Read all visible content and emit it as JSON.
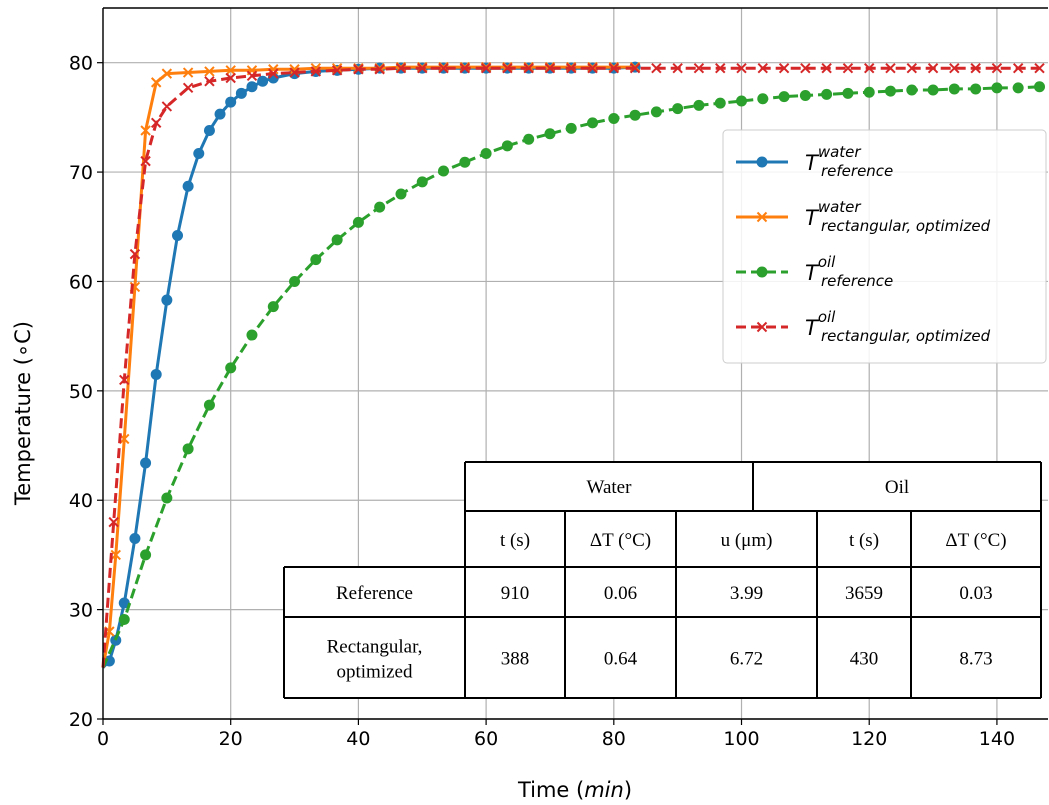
{
  "chart_data": {
    "type": "line",
    "xlabel": "Time (min)",
    "xlabel_prefix": "Time (",
    "xlabel_unit": "min",
    "xlabel_suffix": ")",
    "ylabel": "Temperature (∘C)",
    "xlim": [
      0,
      148
    ],
    "ylim": [
      20,
      85
    ],
    "x_ticks": [
      0,
      20,
      40,
      60,
      80,
      100,
      120,
      140
    ],
    "y_ticks": [
      20,
      30,
      40,
      50,
      60,
      70,
      80
    ],
    "grid": true,
    "legend_position": "center-right",
    "series": [
      {
        "name": "T water reference",
        "label_main": "T",
        "label_sup": "water",
        "label_sub": "reference",
        "color": "#1f77b4",
        "linestyle": "solid",
        "marker": "circle",
        "x": [
          0,
          1,
          2,
          3.33,
          5,
          6.67,
          8.33,
          10,
          11.67,
          13.33,
          15,
          16.67,
          18.33,
          20,
          21.67,
          23.33,
          25,
          26.67,
          30,
          33.33,
          36.67,
          40,
          43.33,
          46.67,
          50,
          53.33,
          56.67,
          60,
          63.33,
          66.67,
          70,
          73.33,
          76.67,
          80,
          83.33
        ],
        "y": [
          24.7,
          25.3,
          27.2,
          30.6,
          36.5,
          43.4,
          51.5,
          58.3,
          64.2,
          68.7,
          71.7,
          73.8,
          75.3,
          76.4,
          77.2,
          77.8,
          78.3,
          78.6,
          79.0,
          79.2,
          79.3,
          79.4,
          79.5,
          79.5,
          79.5,
          79.5,
          79.5,
          79.5,
          79.5,
          79.5,
          79.5,
          79.5,
          79.5,
          79.5,
          79.6
        ]
      },
      {
        "name": "T water rectangular, optimized",
        "label_main": "T",
        "label_sup": "water",
        "label_sub": "rectangular, optimized",
        "color": "#ff7f0e",
        "linestyle": "solid",
        "marker": "x",
        "x": [
          0,
          1,
          2,
          3.33,
          5,
          6.67,
          8.33,
          10,
          13.33,
          16.67,
          20,
          23.33,
          26.67,
          30,
          33.33,
          36.67,
          40,
          43.33,
          46.67,
          50,
          53.33,
          56.67,
          60,
          63.33,
          66.67,
          70,
          73.33,
          76.67,
          80,
          83.33
        ],
        "y": [
          24.7,
          28.0,
          35.0,
          45.6,
          59.5,
          73.8,
          78.2,
          79.0,
          79.1,
          79.2,
          79.3,
          79.3,
          79.4,
          79.4,
          79.5,
          79.5,
          79.5,
          79.5,
          79.6,
          79.6,
          79.6,
          79.6,
          79.6,
          79.6,
          79.6,
          79.6,
          79.6,
          79.6,
          79.6,
          79.6
        ]
      },
      {
        "name": "T oil reference",
        "label_main": "T",
        "label_sup": "oil",
        "label_sub": "reference",
        "color": "#2ca02c",
        "linestyle": "dashed",
        "marker": "circle",
        "x": [
          0,
          3.33,
          6.67,
          10,
          13.33,
          16.67,
          20,
          23.33,
          26.67,
          30,
          33.33,
          36.67,
          40,
          43.33,
          46.67,
          50,
          53.33,
          56.67,
          60,
          63.33,
          66.67,
          70,
          73.33,
          76.67,
          80,
          83.33,
          86.67,
          90,
          93.33,
          96.67,
          100,
          103.33,
          106.67,
          110,
          113.33,
          116.67,
          120,
          123.33,
          126.67,
          130,
          133.33,
          136.67,
          140,
          143.33,
          146.67
        ],
        "y": [
          24.7,
          29.1,
          35.0,
          40.2,
          44.7,
          48.7,
          52.1,
          55.1,
          57.7,
          60.0,
          62.0,
          63.8,
          65.4,
          66.8,
          68.0,
          69.1,
          70.1,
          70.9,
          71.7,
          72.4,
          73.0,
          73.5,
          74.0,
          74.5,
          74.9,
          75.2,
          75.5,
          75.8,
          76.1,
          76.3,
          76.5,
          76.7,
          76.9,
          77.0,
          77.1,
          77.2,
          77.3,
          77.4,
          77.5,
          77.5,
          77.6,
          77.6,
          77.7,
          77.7,
          77.8
        ]
      },
      {
        "name": "T oil rectangular, optimized",
        "label_main": "T",
        "label_sup": "oil",
        "label_sub": "rectangular, optimized",
        "color": "#d62728",
        "linestyle": "dashed",
        "marker": "x",
        "x": [
          0,
          1.67,
          3.33,
          5,
          6.67,
          8.33,
          10,
          13.33,
          16.67,
          20,
          23.33,
          26.67,
          30,
          33.33,
          36.67,
          40,
          43.33,
          46.67,
          50,
          53.33,
          56.67,
          60,
          63.33,
          66.67,
          70,
          73.33,
          76.67,
          80,
          83.33,
          86.67,
          90,
          93.33,
          96.67,
          100,
          103.33,
          106.67,
          110,
          113.33,
          116.67,
          120,
          123.33,
          126.67,
          130,
          133.33,
          136.67,
          140,
          143.33,
          146.67
        ],
        "y": [
          24.7,
          38.0,
          51.0,
          62.5,
          71.0,
          74.5,
          76.0,
          77.7,
          78.3,
          78.6,
          78.8,
          79.0,
          79.1,
          79.2,
          79.3,
          79.4,
          79.4,
          79.5,
          79.5,
          79.5,
          79.5,
          79.5,
          79.5,
          79.5,
          79.5,
          79.5,
          79.5,
          79.5,
          79.5,
          79.5,
          79.5,
          79.5,
          79.5,
          79.5,
          79.5,
          79.5,
          79.5,
          79.5,
          79.5,
          79.5,
          79.5,
          79.5,
          79.5,
          79.5,
          79.5,
          79.5,
          79.5,
          79.5
        ]
      }
    ]
  },
  "table": {
    "group_headers": [
      "Water",
      "Oil"
    ],
    "column_headers": [
      "t (s)",
      "ΔT (°C)",
      "u (μm)",
      "t (s)",
      "ΔT (°C)"
    ],
    "rows": [
      {
        "label": [
          "Reference"
        ],
        "values": [
          "910",
          "0.06",
          "3.99",
          "3659",
          "0.03"
        ]
      },
      {
        "label": [
          "Rectangular,",
          "optimized"
        ],
        "values": [
          "388",
          "0.64",
          "6.72",
          "430",
          "8.73"
        ]
      }
    ]
  }
}
